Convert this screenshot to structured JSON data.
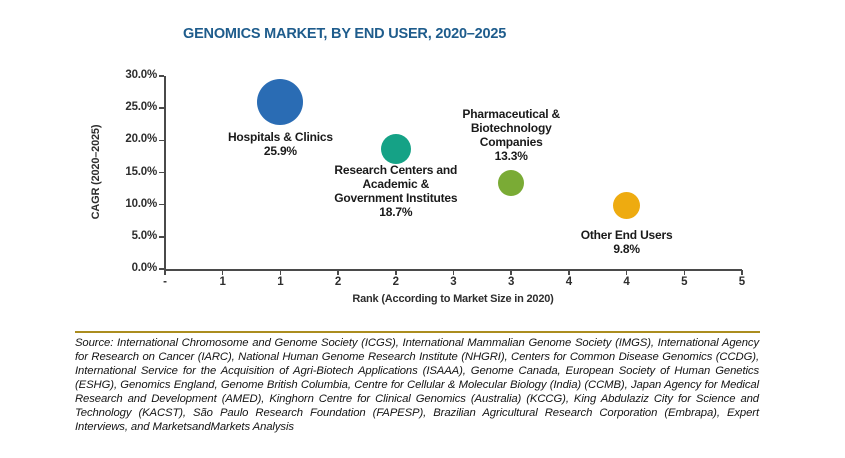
{
  "page": {
    "title": "GENOMICS MARKET, BY END USER, 2020–2025"
  },
  "chart_data": {
    "type": "scatter",
    "subtype": "bubble",
    "title": "GENOMICS MARKET, BY END USER, 2020–2025",
    "xlabel": "Rank (According to Market Size in 2020)",
    "ylabel": "CAGR (2020–2025)",
    "xlim": [
      0,
      5
    ],
    "ylim_pct": [
      0,
      30
    ],
    "grid": false,
    "legend": "none",
    "x_tick_labels": [
      "-",
      "1",
      "1",
      "2",
      "2",
      "3",
      "3",
      "4",
      "4",
      "5",
      "5"
    ],
    "y_tick_labels": [
      "0.0%",
      "5.0%",
      "10.0%",
      "15.0%",
      "20.0%",
      "25.0%",
      "30.0%"
    ],
    "points": [
      {
        "name": "Hospitals & Clinics",
        "rank": 1,
        "cagr_pct": 25.9,
        "value_label": "25.9%",
        "label_lines": [
          "Hospitals & Clinics",
          "25.9%"
        ],
        "color": "#2a6cb4",
        "radius": 23,
        "label_position": "below",
        "label_dy": 2
      },
      {
        "name": "Research Centers and Academic & Government Institutes",
        "rank": 2,
        "cagr_pct": 18.7,
        "value_label": "18.7%",
        "label_lines": [
          "Research Centers and",
          "Academic &",
          "Government Institutes",
          "18.7%"
        ],
        "color": "#15a286",
        "radius": 15,
        "label_position": "below",
        "label_dy": -4
      },
      {
        "name": "Pharmaceutical & Biotechnology Companies",
        "rank": 3,
        "cagr_pct": 13.3,
        "value_label": "13.3%",
        "label_lines": [
          "Pharmaceutical &",
          "Biotechnology",
          "Companies",
          "13.3%"
        ],
        "color": "#7aab35",
        "radius": 13,
        "label_position": "above",
        "label_dy": -4
      },
      {
        "name": "Other End Users",
        "rank": 4,
        "cagr_pct": 9.8,
        "value_label": "9.8%",
        "label_lines": [
          "Other End Users",
          "9.8%"
        ],
        "color": "#eeab10",
        "radius": 13.5,
        "label_position": "below",
        "label_dy": 6
      }
    ]
  },
  "source": {
    "text": "Source: International Chromosome and Genome Society (ICGS), International Mammalian Genome Society (IMGS), International Agency for Research on Cancer (IARC), National Human Genome Research Institute (NHGRI), Centers for Common Disease Genomics (CCDG), International Service for the Acquisition of Agri-Biotech Applications (ISAAA), Genome Canada, European Society of Human Genetics (ESHG), Genomics England, Genome British Columbia, Centre for Cellular & Molecular Biology (India) (CCMB), Japan Agency for Medical Research and Development (AMED), Kinghorn Centre for Clinical Genomics (Australia) (KCCG), King Abdulaziz City for Science and Technology (KACST), São Paulo Research Foundation (FAPESP), Brazilian Agricultural Research Corporation (Embrapa), Expert Interviews, and MarketsandMarkets Analysis"
  },
  "colors": {
    "title": "#1e5c8c",
    "divider": "#ab8d1f",
    "axis": "#4a4a4a"
  }
}
